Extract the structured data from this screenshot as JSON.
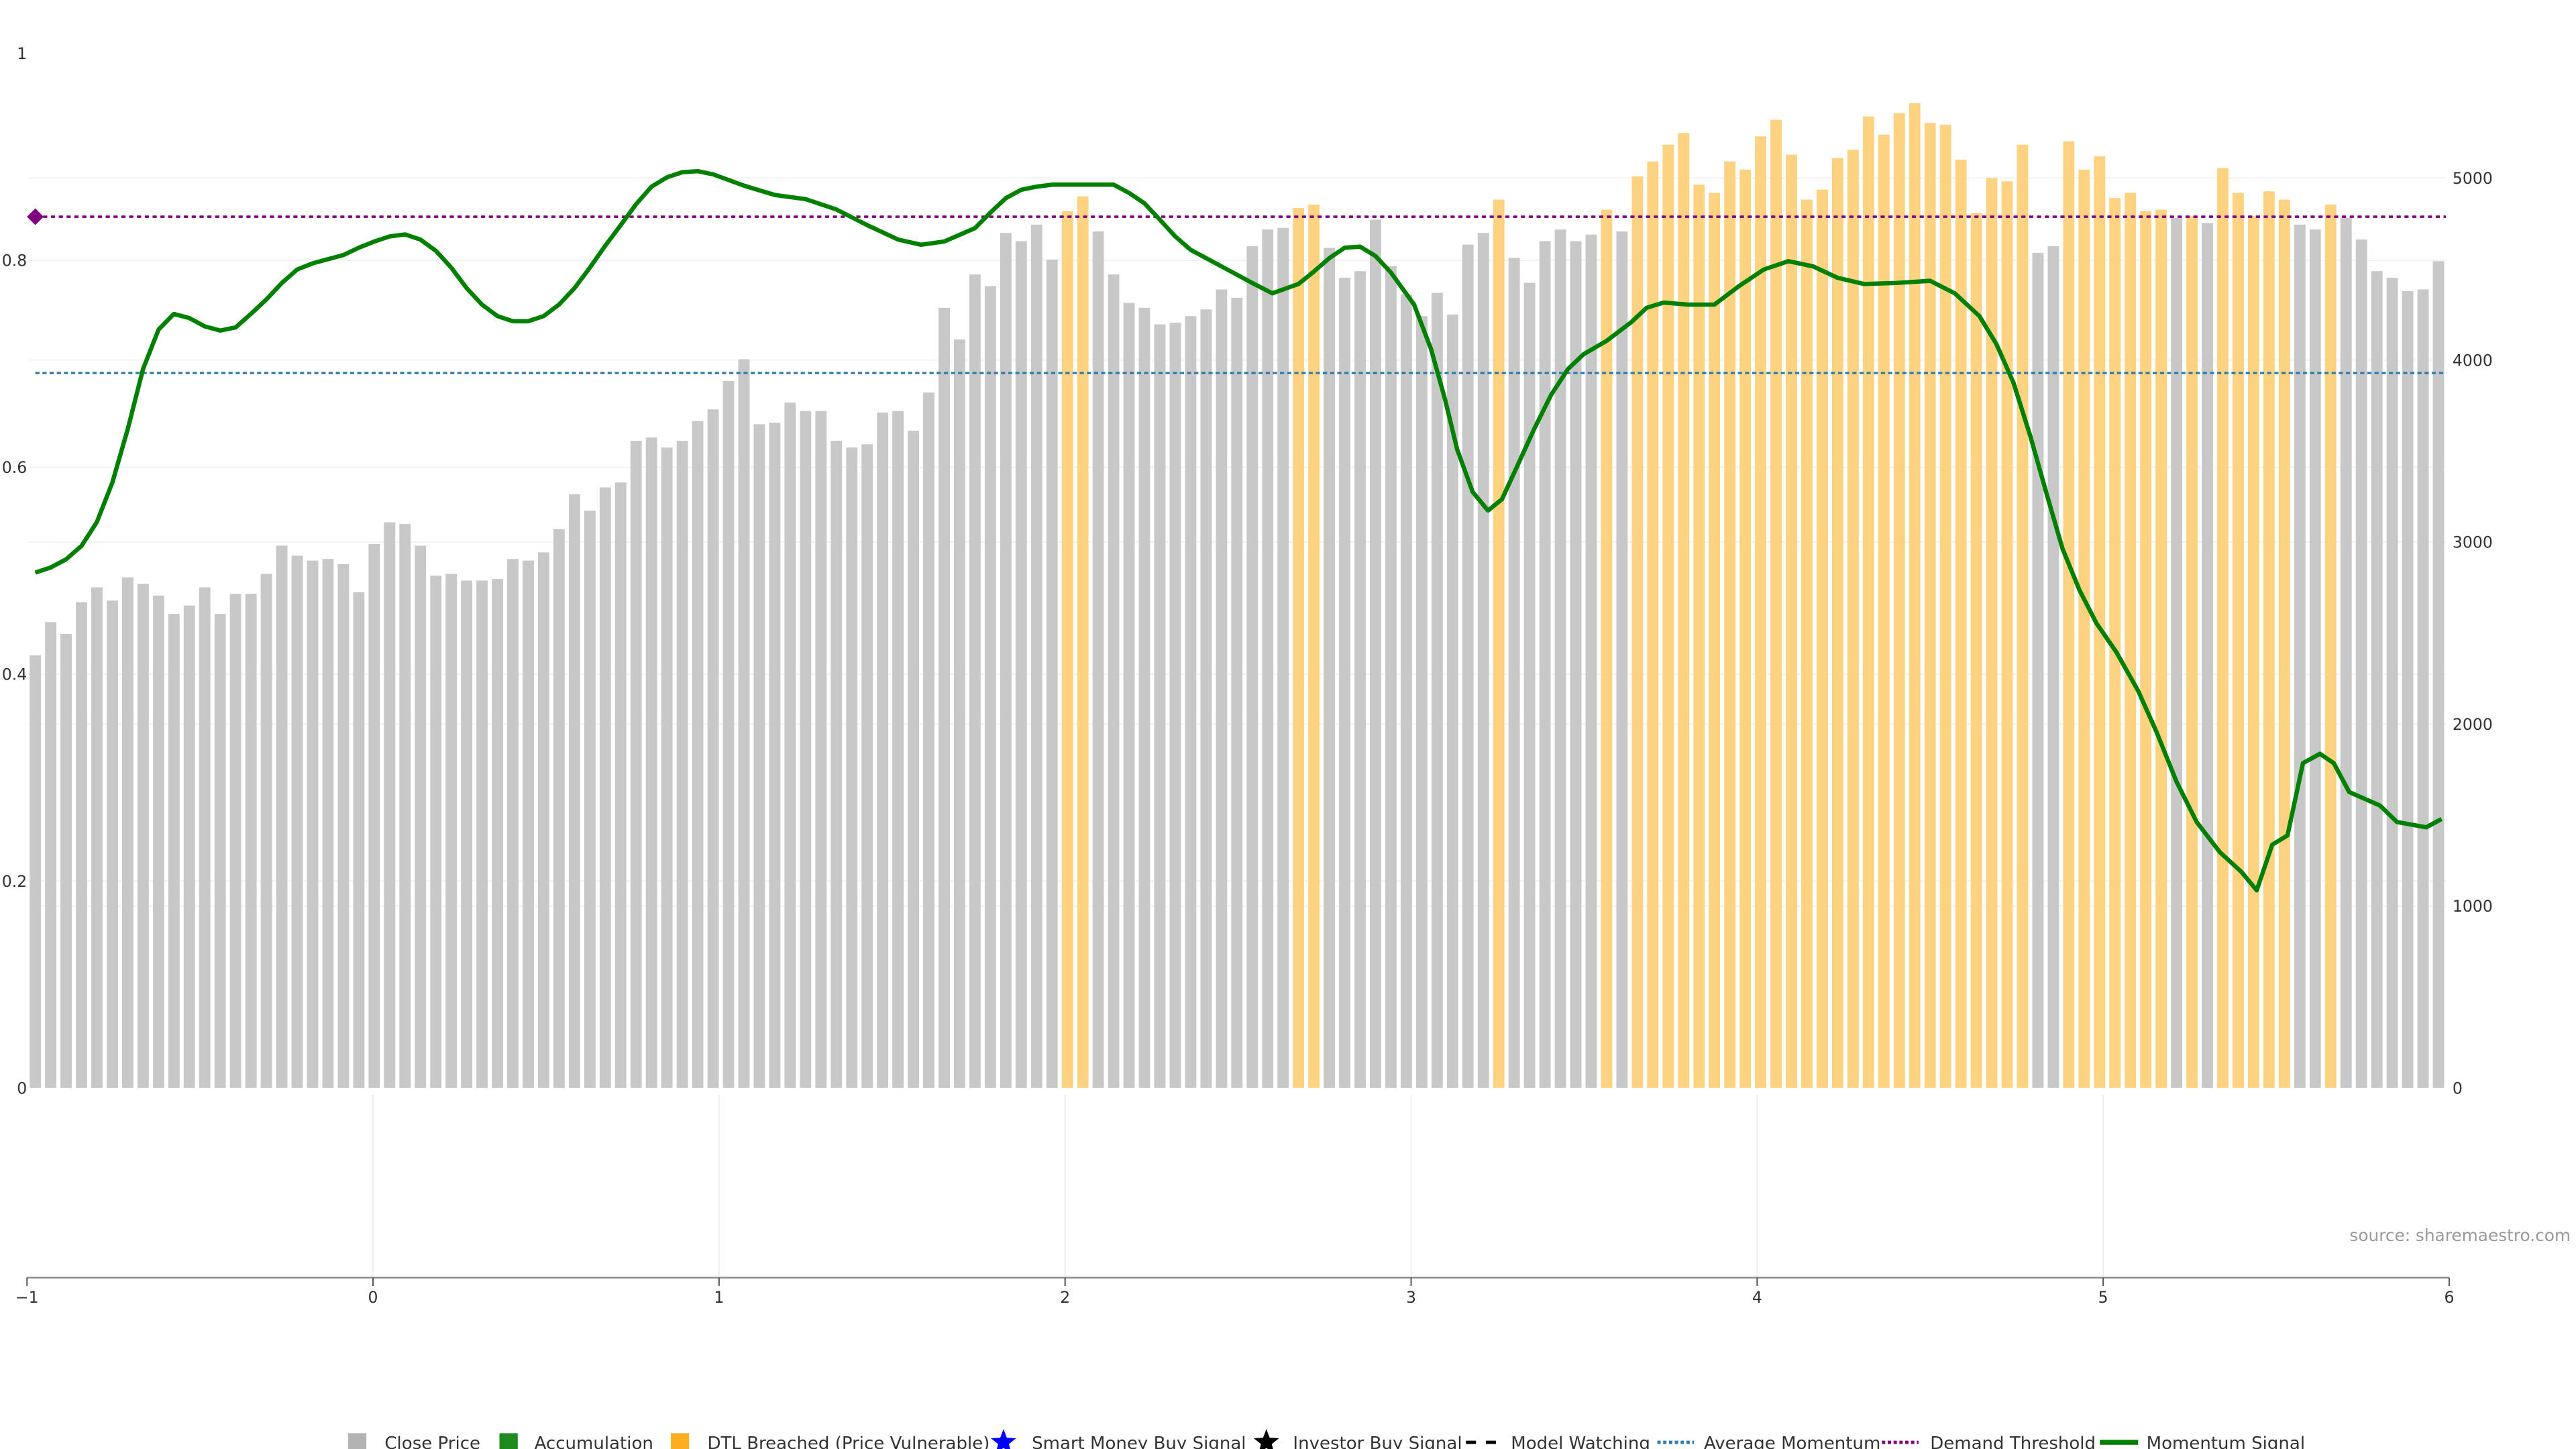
{
  "chart_data": {
    "type": "bar",
    "title": "",
    "source": "source: sharemaestro.com",
    "left_axis": {
      "ticks": [
        "0",
        "0.2",
        "0.4",
        "0.6",
        "0.8",
        "1"
      ],
      "tick_values": [
        0,
        0.2,
        0.4,
        0.6,
        0.8,
        1
      ],
      "ylim": [
        0,
        1
      ]
    },
    "right_axis": {
      "ticks": [
        "0",
        "1000",
        "2000",
        "3000",
        "4000",
        "5000"
      ],
      "tick_values": [
        0,
        1000,
        2000,
        3000,
        4000,
        5000
      ],
      "ylim": [
        0,
        5690
      ]
    },
    "x_axis": {
      "ticks": [
        "−1",
        "0",
        "1",
        "2",
        "3",
        "4",
        "5",
        "6"
      ],
      "tick_values": [
        -1,
        0,
        1,
        2,
        3,
        4,
        5,
        6
      ],
      "xlim": [
        -1,
        6
      ]
    },
    "grid": true,
    "legend_position": "bottom-center",
    "colors": {
      "close": "#c8c8c8",
      "dtl": "#fdd281",
      "momentum": "#008000",
      "average": "#2a7ab0",
      "demand": "#800080"
    },
    "close_price": [
      2377,
      2560,
      2495,
      2669,
      2751,
      2678,
      2806,
      2770,
      2706,
      2605,
      2651,
      2751,
      2605,
      2715,
      2715,
      2825,
      2980,
      2925,
      2898,
      2907,
      2879,
      2724,
      2989,
      3108,
      3099,
      2980,
      2815,
      2825,
      2788,
      2788,
      2797,
      2907,
      2898,
      2943,
      3071,
      3263,
      3172,
      3300,
      3327,
      3556,
      3574,
      3519,
      3556,
      3665,
      3729,
      3885,
      4004,
      3647,
      3656,
      3766,
      3720,
      3720,
      3556,
      3519,
      3537,
      3711,
      3720,
      3611,
      3821,
      4287,
      4113,
      4470,
      4406,
      4698,
      4653,
      4744,
      4552,
      4817,
      4899,
      4707,
      4470,
      4314,
      4287,
      4196,
      4205,
      4241,
      4278,
      4388,
      4342,
      4625,
      4717,
      4726,
      4835,
      4854,
      4616,
      4452,
      4488,
      4771,
      4516,
      4360,
      4241,
      4369,
      4250,
      4634,
      4698,
      4881,
      4561,
      4424,
      4653,
      4717,
      4653,
      4689,
      4826,
      4707,
      5009,
      5091,
      5183,
      5247,
      4963,
      4918,
      5091,
      5046,
      5229,
      5320,
      5128,
      4881,
      4936,
      5110,
      5155,
      5338,
      5238,
      5357,
      5411,
      5302,
      5293,
      5101,
      4808,
      5000,
      4982,
      5183,
      4589,
      4625,
      5201,
      5046,
      5119,
      4890,
      4918,
      4817,
      4826,
      4781,
      4790,
      4753,
      5055,
      4918,
      4790,
      4927,
      4881,
      4744,
      4717,
      4854,
      4781,
      4662,
      4488,
      4452,
      4379,
      4388,
      4543
    ],
    "dtl_breached_indices": [
      67,
      68,
      82,
      83,
      95,
      102,
      104,
      105,
      106,
      107,
      108,
      109,
      110,
      111,
      112,
      113,
      114,
      115,
      116,
      117,
      118,
      119,
      120,
      121,
      122,
      123,
      124,
      125,
      126,
      127,
      128,
      129,
      132,
      133,
      134,
      135,
      136,
      137,
      138,
      140,
      142,
      143,
      144,
      145,
      146,
      149
    ],
    "average_momentum": 0.691,
    "demand_threshold": 0.842,
    "momentum_signal": [
      [
        0,
        0.498
      ],
      [
        1,
        0.503
      ],
      [
        2,
        0.511
      ],
      [
        3,
        0.524
      ],
      [
        4,
        0.547
      ],
      [
        5,
        0.585
      ],
      [
        6,
        0.637
      ],
      [
        7,
        0.695
      ],
      [
        8,
        0.733
      ],
      [
        9,
        0.748
      ],
      [
        10,
        0.744
      ],
      [
        11,
        0.736
      ],
      [
        12,
        0.732
      ],
      [
        13,
        0.735
      ],
      [
        14,
        0.748
      ],
      [
        15,
        0.762
      ],
      [
        16,
        0.778
      ],
      [
        17,
        0.791
      ],
      [
        18,
        0.797
      ],
      [
        19,
        0.801
      ],
      [
        20,
        0.805
      ],
      [
        21,
        0.812
      ],
      [
        22,
        0.818
      ],
      [
        23,
        0.823
      ],
      [
        24,
        0.825
      ],
      [
        25,
        0.82
      ],
      [
        26,
        0.809
      ],
      [
        27,
        0.793
      ],
      [
        28,
        0.773
      ],
      [
        29,
        0.757
      ],
      [
        30,
        0.746
      ],
      [
        31,
        0.741
      ],
      [
        32,
        0.741
      ],
      [
        33,
        0.746
      ],
      [
        34,
        0.757
      ],
      [
        35,
        0.773
      ],
      [
        36,
        0.793
      ],
      [
        37,
        0.814
      ],
      [
        38,
        0.834
      ],
      [
        39,
        0.854
      ],
      [
        40,
        0.871
      ],
      [
        41,
        0.88
      ],
      [
        42,
        0.885
      ],
      [
        43,
        0.886
      ],
      [
        44,
        0.883
      ],
      [
        46,
        0.872
      ],
      [
        48,
        0.863
      ],
      [
        50,
        0.859
      ],
      [
        52,
        0.849
      ],
      [
        54,
        0.834
      ],
      [
        56,
        0.82
      ],
      [
        57.5,
        0.815
      ],
      [
        59,
        0.818
      ],
      [
        61,
        0.831
      ],
      [
        62,
        0.846
      ],
      [
        63,
        0.86
      ],
      [
        64,
        0.868
      ],
      [
        65,
        0.871
      ],
      [
        66,
        0.873
      ],
      [
        70,
        0.873
      ],
      [
        71,
        0.865
      ],
      [
        72,
        0.855
      ],
      [
        73,
        0.839
      ],
      [
        74,
        0.823
      ],
      [
        75,
        0.81
      ],
      [
        77,
        0.794
      ],
      [
        79,
        0.778
      ],
      [
        80.3,
        0.768
      ],
      [
        82,
        0.777
      ],
      [
        83,
        0.789
      ],
      [
        84,
        0.802
      ],
      [
        85,
        0.812
      ],
      [
        86,
        0.813
      ],
      [
        87,
        0.804
      ],
      [
        88,
        0.788
      ],
      [
        89.5,
        0.757
      ],
      [
        90.6,
        0.714
      ],
      [
        91.5,
        0.666
      ],
      [
        92.3,
        0.617
      ],
      [
        93.3,
        0.576
      ],
      [
        94.3,
        0.558
      ],
      [
        95.2,
        0.569
      ],
      [
        96.2,
        0.601
      ],
      [
        97.3,
        0.637
      ],
      [
        98.4,
        0.67
      ],
      [
        99.5,
        0.695
      ],
      [
        100.5,
        0.709
      ],
      [
        102,
        0.722
      ],
      [
        103.6,
        0.74
      ],
      [
        104.6,
        0.754
      ],
      [
        105.7,
        0.759
      ],
      [
        107.3,
        0.757
      ],
      [
        109,
        0.757
      ],
      [
        110.6,
        0.775
      ],
      [
        112.2,
        0.791
      ],
      [
        113.8,
        0.799
      ],
      [
        115.4,
        0.794
      ],
      [
        117,
        0.783
      ],
      [
        118.7,
        0.777
      ],
      [
        120.8,
        0.778
      ],
      [
        123,
        0.78
      ],
      [
        124.6,
        0.768
      ],
      [
        126.2,
        0.746
      ],
      [
        127.3,
        0.719
      ],
      [
        128.4,
        0.682
      ],
      [
        129.5,
        0.63
      ],
      [
        130.6,
        0.572
      ],
      [
        131.6,
        0.521
      ],
      [
        132.7,
        0.481
      ],
      [
        133.8,
        0.449
      ],
      [
        135.1,
        0.421
      ],
      [
        136.5,
        0.384
      ],
      [
        137.7,
        0.344
      ],
      [
        139,
        0.296
      ],
      [
        140.3,
        0.257
      ],
      [
        141.8,
        0.228
      ],
      [
        143.2,
        0.209
      ],
      [
        144.2,
        0.191
      ],
      [
        145.2,
        0.235
      ],
      [
        146.2,
        0.244
      ],
      [
        147.2,
        0.314
      ],
      [
        148.3,
        0.323
      ],
      [
        149.2,
        0.314
      ],
      [
        150.2,
        0.286
      ],
      [
        152.2,
        0.273
      ],
      [
        153.3,
        0.257
      ],
      [
        155.2,
        0.252
      ],
      [
        156.2,
        0.26
      ]
    ],
    "legend": [
      {
        "label": "Close Price",
        "icon": "square",
        "color": "#b3b3b3"
      },
      {
        "label": "Accumulation",
        "icon": "square",
        "color": "#1f8a1f"
      },
      {
        "label": "DTL Breached (Price Vulnerable)",
        "icon": "square",
        "color": "#fdae1f"
      },
      {
        "label": "Smart Money Buy Signal",
        "icon": "star",
        "color": "#0000ff"
      },
      {
        "label": "Investor Buy Signal",
        "icon": "star",
        "color": "#000000"
      },
      {
        "label": "Model Watching",
        "icon": "dashed-line",
        "color": "#000000"
      },
      {
        "label": "Average Momentum",
        "icon": "dotted-line",
        "color": "#2a7ab0"
      },
      {
        "label": "Demand Threshold",
        "icon": "dotted-line",
        "color": "#800080"
      },
      {
        "label": "Momentum Signal",
        "icon": "solid-line",
        "color": "#008000"
      }
    ]
  }
}
